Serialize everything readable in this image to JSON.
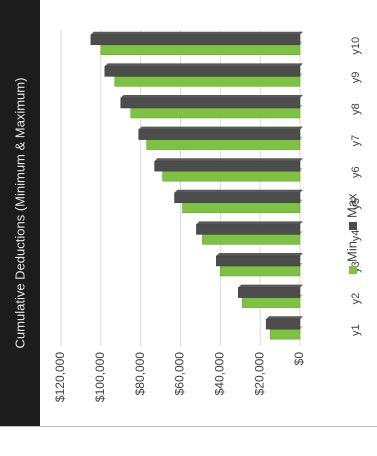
{
  "chart_data": {
    "type": "bar",
    "orientation": "horizontal-rotated",
    "title": "Cumulative Deductions (Minimum & Maximum)",
    "categories": [
      "y1",
      "y2",
      "y3",
      "y4",
      "y5",
      "y6",
      "y7",
      "y8",
      "y9",
      "y10"
    ],
    "series": [
      {
        "name": "Min",
        "color": "#7ec242",
        "values": [
          15000,
          29000,
          40000,
          49000,
          59000,
          69000,
          77000,
          85000,
          93000,
          100000
        ]
      },
      {
        "name": "Max",
        "color": "#4d4d4d",
        "values": [
          17000,
          31000,
          42000,
          52000,
          63000,
          73000,
          81000,
          90000,
          98000,
          105000
        ]
      }
    ],
    "value_axis": {
      "min": 0,
      "max": 120000,
      "ticks": [
        0,
        20000,
        40000,
        60000,
        80000,
        100000,
        120000
      ],
      "tick_labels": [
        "$0",
        "$20,000",
        "$40,000",
        "$60,000",
        "$80,000",
        "$100,000",
        "$120,000"
      ]
    },
    "grid": true,
    "style": "3d",
    "legend": {
      "position": "bottom",
      "entries": [
        "Min",
        "Max"
      ]
    }
  }
}
